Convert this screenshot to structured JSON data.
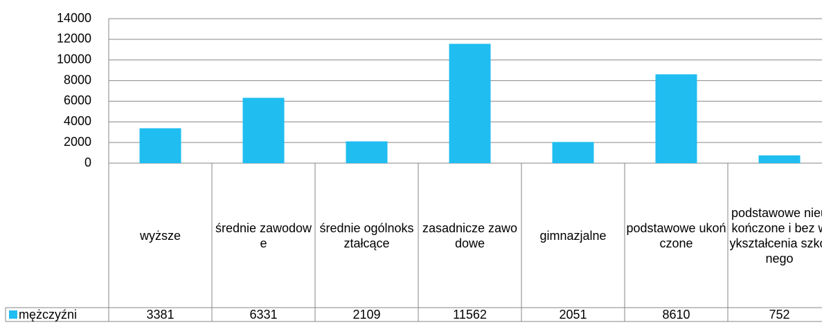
{
  "chart_data": {
    "type": "bar",
    "categories": [
      "wyższe",
      "średnie zawodowe",
      "średnie ogólnokształcące",
      "zasadnicze zawodowe",
      "gimnazjalne",
      "podstawowe ukończone",
      "podstawowe nieukończone i bez wykształcenia szkolnego"
    ],
    "series": [
      {
        "name": "mężczyźni",
        "color": "#1fbdf0",
        "values": [
          3381,
          6331,
          2109,
          11562,
          2051,
          8610,
          752
        ]
      }
    ],
    "ylim": [
      0,
      14000
    ],
    "yticks": [
      0,
      2000,
      4000,
      6000,
      8000,
      10000,
      12000,
      14000
    ],
    "grid": true
  }
}
